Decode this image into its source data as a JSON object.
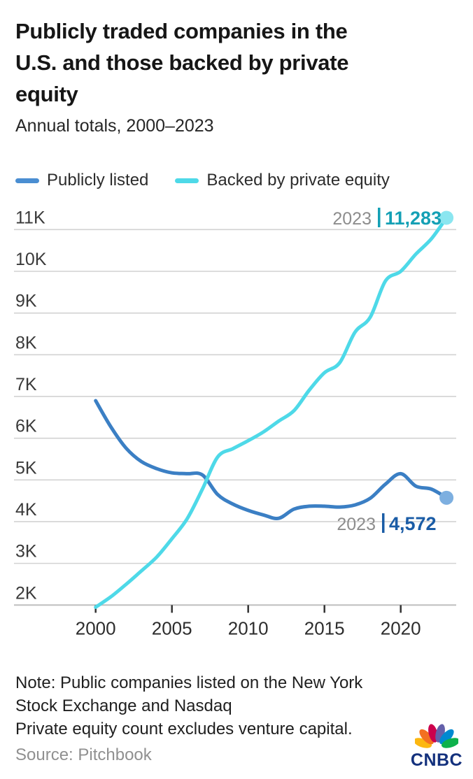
{
  "title_lines": [
    "Publicly traded companies in the",
    "U.S. and those backed by private",
    "equity"
  ],
  "subtitle": "Annual totals, 2000–2023",
  "legend": [
    {
      "label": "Publicly listed",
      "color": "#4a8ed2"
    },
    {
      "label": "Backed by private equity",
      "color": "#4ed9e8"
    }
  ],
  "chart_data": {
    "type": "line",
    "x": [
      2000,
      2001,
      2002,
      2003,
      2004,
      2005,
      2006,
      2007,
      2008,
      2009,
      2010,
      2011,
      2012,
      2013,
      2014,
      2015,
      2016,
      2017,
      2018,
      2019,
      2020,
      2021,
      2022,
      2023
    ],
    "series": [
      {
        "name": "Publicly listed",
        "color": "#3b7fc4",
        "dot_color": "#7dafe0",
        "values": [
          6900,
          6270,
          5760,
          5440,
          5270,
          5170,
          5150,
          5120,
          4650,
          4420,
          4270,
          4160,
          4080,
          4300,
          4370,
          4370,
          4350,
          4400,
          4560,
          4900,
          5150,
          4850,
          4780,
          4572
        ]
      },
      {
        "name": "Backed by private equity",
        "color": "#4ed9e8",
        "dot_color": "#8be6f0",
        "values": [
          1950,
          2200,
          2500,
          2820,
          3150,
          3590,
          4070,
          4780,
          5550,
          5750,
          5940,
          6150,
          6410,
          6660,
          7150,
          7570,
          7810,
          8540,
          8900,
          9770,
          10000,
          10415,
          10775,
          11283
        ]
      }
    ],
    "yticks": [
      2000,
      3000,
      4000,
      5000,
      6000,
      7000,
      8000,
      9000,
      10000,
      11000
    ],
    "ytick_labels": [
      "2K",
      "3K",
      "4K",
      "5K",
      "6K",
      "7K",
      "8K",
      "9K",
      "10K",
      "11K"
    ],
    "xticks": [
      2000,
      2005,
      2010,
      2015,
      2020
    ],
    "xtick_labels": [
      "2000",
      "2005",
      "2010",
      "2015",
      "2020"
    ],
    "ylim": [
      2000,
      11400
    ],
    "xlim": [
      2000,
      2023
    ],
    "grid": "horizontal",
    "legend_position": "top",
    "callouts": [
      {
        "year": "2023",
        "value": "11,283",
        "series": 1,
        "year_color": "#8d8d8d",
        "value_color": "#14a0b5"
      },
      {
        "year": "2023",
        "value": "4,572",
        "series": 0,
        "year_color": "#8d8d8d",
        "value_color": "#1a5ca6"
      }
    ]
  },
  "footer": {
    "note_lines": [
      "Note: Public companies listed on the New York",
      "Stock Exchange and Nasdaq",
      "Private equity count excludes venture capital."
    ],
    "source": "Source: Pitchbook",
    "logo_text": "CNBC",
    "logo_color": "#14317d",
    "peacock_colors": [
      "#FCB711",
      "#F37021",
      "#CC004C",
      "#6460AA",
      "#0089D0",
      "#0DB14B"
    ]
  }
}
